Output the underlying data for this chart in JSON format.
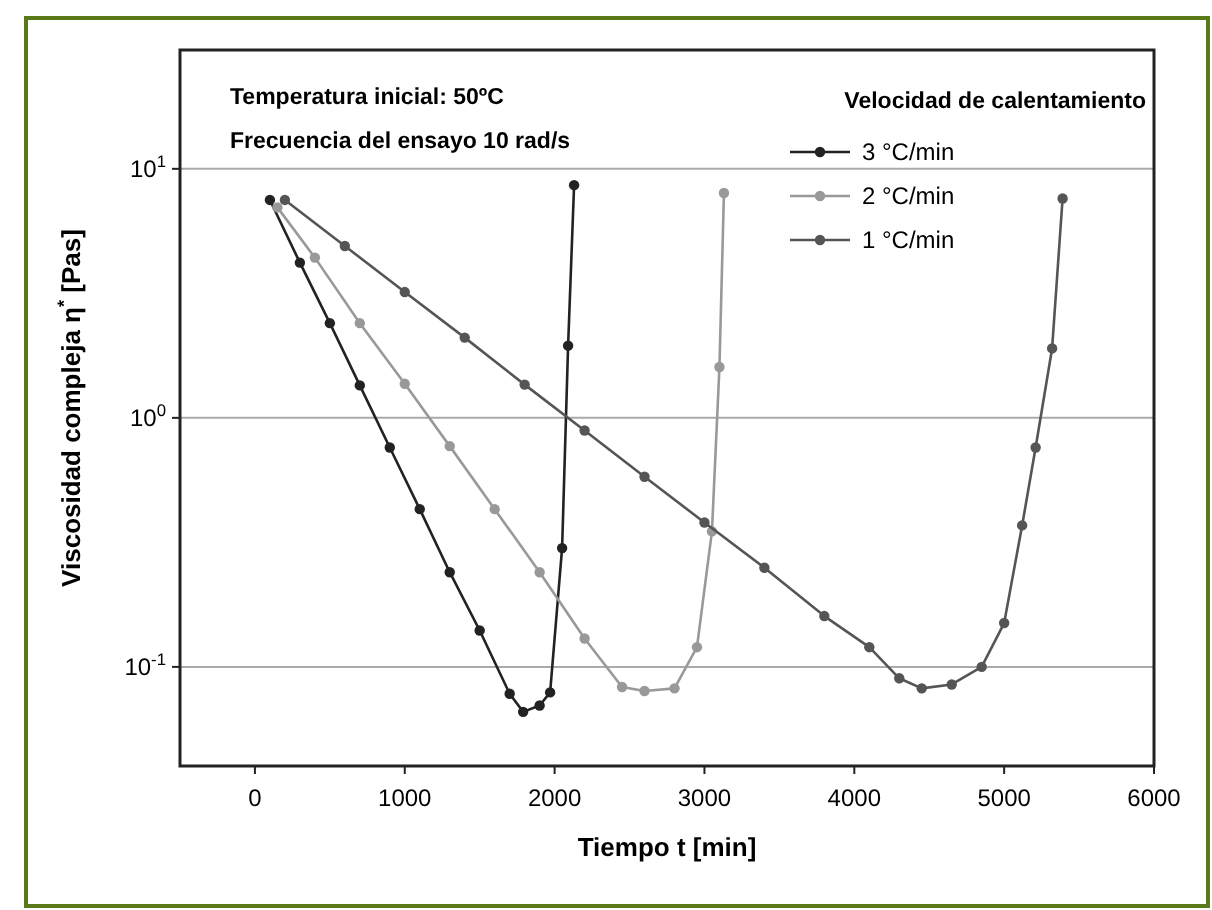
{
  "chart_data": {
    "type": "line",
    "xlabel": "Tiempo t [min]",
    "ylabel": "Viscosidad compleja η$^{*}$ [Pas]",
    "legend_title": "Velocidad de calentamiento",
    "annotations": [
      "Temperatura inicial: 50ºC",
      "Frecuencia del ensayo 10 rad/s"
    ],
    "log": "y",
    "grid": "y",
    "legend": "top right",
    "marker": "circle",
    "line_style": "solid",
    "xlim": [
      -500,
      6000
    ],
    "xticks": [
      0,
      1000,
      2000,
      3000,
      4000,
      5000,
      6000
    ],
    "ylim": [
      0.04,
      30
    ],
    "yticks": [
      {
        "value": 0.1,
        "label": "10$^{-1}$"
      },
      {
        "value": 1,
        "label": "10$^{0}$"
      },
      {
        "value": 10,
        "label": "10$^{1}$"
      }
    ],
    "series": [
      {
        "name": "3 °C/min",
        "color": "#222222",
        "x": [
          100,
          300,
          500,
          700,
          900,
          1100,
          1300,
          1500,
          1700,
          1790,
          1900,
          1970,
          2050,
          2090,
          2130
        ],
        "values": [
          7.5,
          4.2,
          2.4,
          1.35,
          0.76,
          0.43,
          0.24,
          0.14,
          0.078,
          0.066,
          0.07,
          0.079,
          0.3,
          1.95,
          8.6
        ]
      },
      {
        "name": "2 °C/min",
        "color": "#999999",
        "x": [
          150,
          400,
          700,
          1000,
          1300,
          1600,
          1900,
          2200,
          2450,
          2600,
          2800,
          2950,
          3050,
          3100,
          3130
        ],
        "values": [
          7,
          4.4,
          2.4,
          1.37,
          0.77,
          0.43,
          0.24,
          0.13,
          0.083,
          0.08,
          0.082,
          0.12,
          0.35,
          1.6,
          8
        ]
      },
      {
        "name": "1 °C/min",
        "color": "#555555",
        "x": [
          200,
          600,
          1000,
          1400,
          1800,
          2200,
          2600,
          3000,
          3400,
          3800,
          4100,
          4300,
          4450,
          4650,
          4850,
          5000,
          5120,
          5210,
          5320,
          5390
        ],
        "values": [
          7.5,
          4.9,
          3.2,
          2.1,
          1.36,
          0.89,
          0.58,
          0.38,
          0.25,
          0.16,
          0.12,
          0.09,
          0.082,
          0.085,
          0.1,
          0.15,
          0.37,
          0.76,
          1.9,
          7.6
        ]
      }
    ]
  }
}
